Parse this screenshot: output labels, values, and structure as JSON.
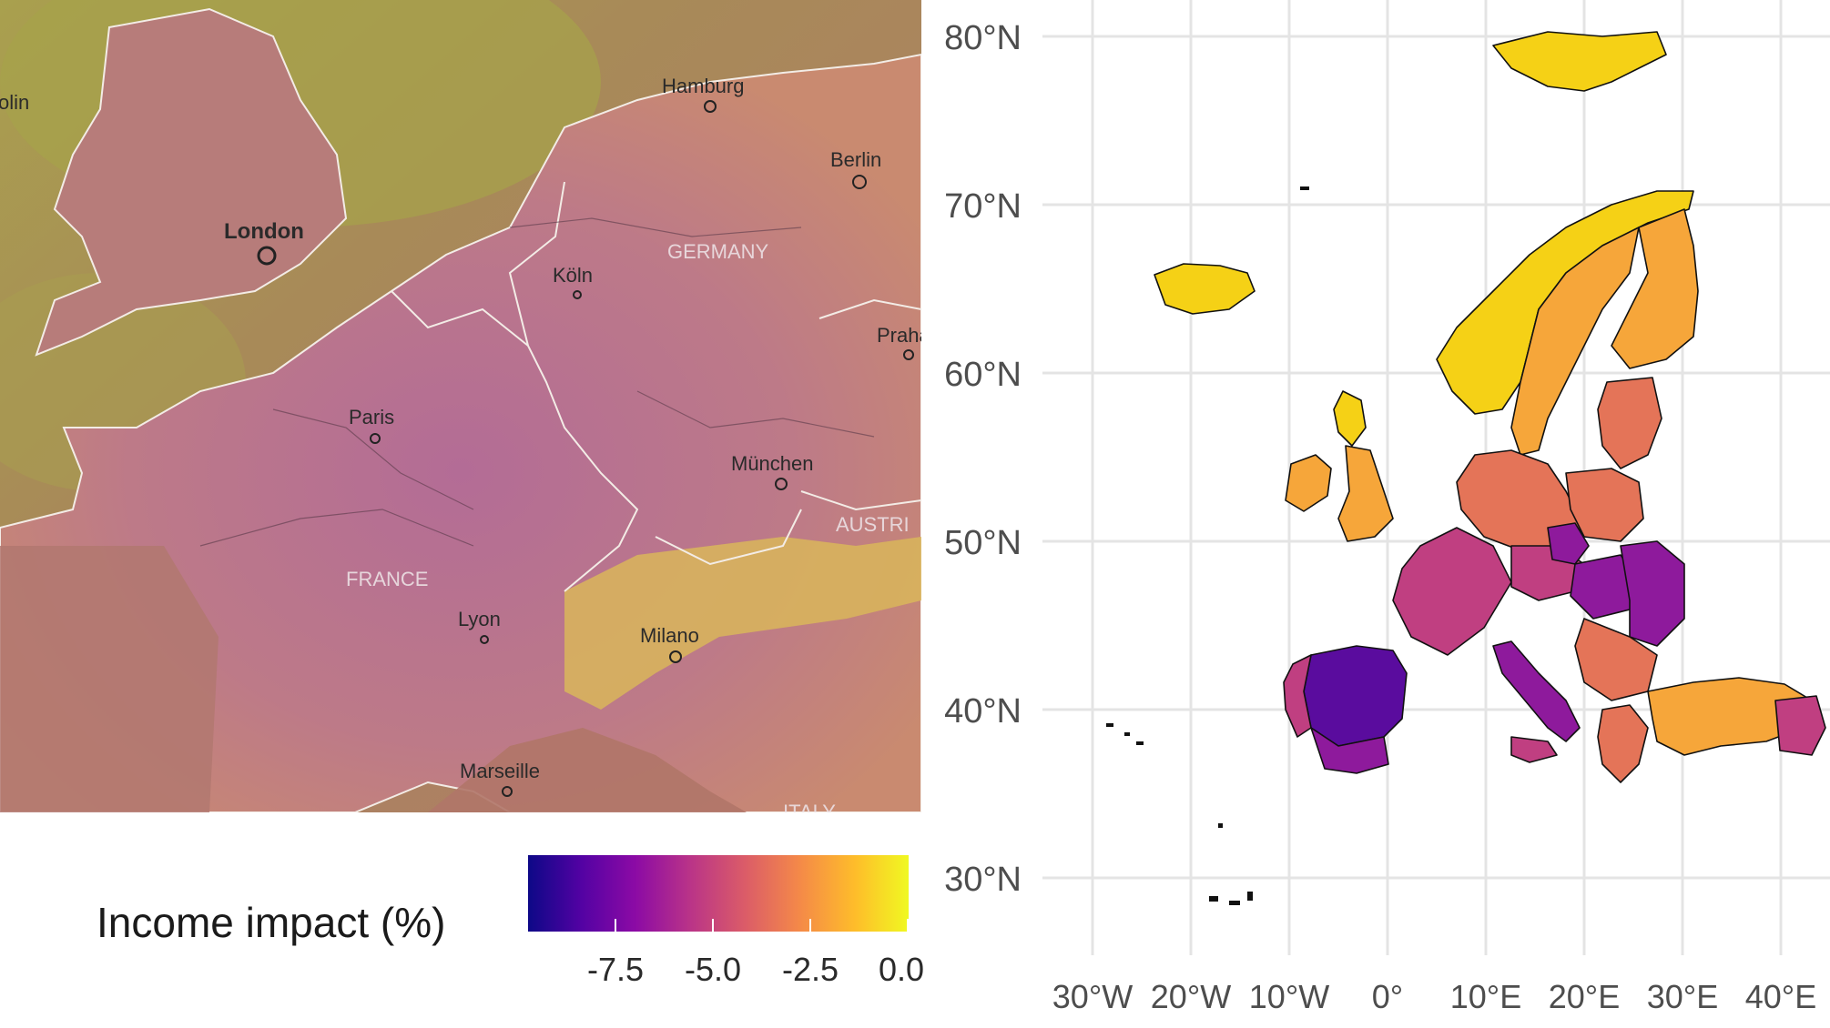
{
  "left_map": {
    "cities": [
      {
        "name": "Hamburg"
      },
      {
        "name": "Berlin"
      },
      {
        "name": "London"
      },
      {
        "name": "Köln"
      },
      {
        "name": "Praha"
      },
      {
        "name": "Paris"
      },
      {
        "name": "München"
      },
      {
        "name": "Lyon"
      },
      {
        "name": "Milano"
      },
      {
        "name": "Marseille"
      },
      {
        "name": "olin"
      }
    ],
    "countries": [
      {
        "name": "GERMANY"
      },
      {
        "name": "FRANCE"
      },
      {
        "name": "AUSTRI"
      },
      {
        "name": "ITALY"
      }
    ]
  },
  "legend": {
    "title": "Income impact (%)",
    "ticks": [
      "-7.5",
      "-5.0",
      "-2.5",
      "0.0"
    ],
    "colors": [
      "#0d0887",
      "#5302a3",
      "#8b0aa5",
      "#b83289",
      "#db5c68",
      "#f48849",
      "#febd2a",
      "#f0f921"
    ]
  },
  "right_map": {
    "lat_labels": [
      "80°N",
      "70°N",
      "60°N",
      "50°N",
      "40°N",
      "30°N"
    ],
    "lon_labels": [
      "30°W",
      "20°W",
      "10°W",
      "0°",
      "10°E",
      "20°E",
      "30°E",
      "40°E"
    ],
    "colors": {
      "yellow": "#f5d116",
      "orange": "#f6a63a",
      "salmon": "#e47458",
      "magenta": "#c03f81",
      "purple": "#8e1a9c",
      "deep": "#5a0c9e"
    }
  }
}
